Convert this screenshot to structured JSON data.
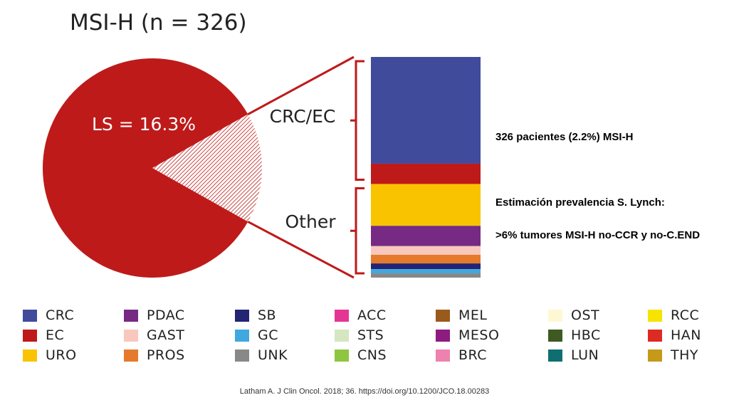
{
  "chart_data": {
    "type": "pie",
    "title": "MSI-H (n = 326)",
    "pie": {
      "slices": [
        {
          "label": "LS = 16.3%",
          "value": 16.3,
          "color": "#ffffff",
          "pattern": "hatched"
        },
        {
          "label": "",
          "value": 83.7,
          "color": "#be1a1a"
        }
      ],
      "slice_label": "LS = 16.3%"
    },
    "stacked_bar": {
      "groups": [
        "CRC/EC",
        "Other"
      ],
      "segments": [
        {
          "category": "CRC",
          "value": 50.5,
          "color": "#404b9c"
        },
        {
          "category": "EC",
          "value": 9.6,
          "color": "#be1a1a"
        },
        {
          "category": "URO",
          "value": 19.8,
          "color": "#f9c300"
        },
        {
          "category": "PDAC",
          "value": 9.6,
          "color": "#762a83"
        },
        {
          "category": "GAST",
          "value": 4.1,
          "color": "#f8c8bc"
        },
        {
          "category": "PROS",
          "value": 4.1,
          "color": "#e57a2c"
        },
        {
          "category": "SB",
          "value": 2.7,
          "color": "#232474"
        },
        {
          "category": "GC",
          "value": 2.0,
          "color": "#40a8de"
        },
        {
          "category": "UNK",
          "value": 2.0,
          "color": "#888888"
        }
      ]
    },
    "legend": [
      {
        "label": "CRC",
        "color": "#404b9c"
      },
      {
        "label": "EC",
        "color": "#be1a1a"
      },
      {
        "label": "URO",
        "color": "#f9c300"
      },
      {
        "label": "PDAC",
        "color": "#762a83"
      },
      {
        "label": "GAST",
        "color": "#f8c8bc"
      },
      {
        "label": "PROS",
        "color": "#e57a2c"
      },
      {
        "label": "SB",
        "color": "#232474"
      },
      {
        "label": "GC",
        "color": "#40a8de"
      },
      {
        "label": "UNK",
        "color": "#888888"
      },
      {
        "label": "ACC",
        "color": "#e43594"
      },
      {
        "label": "STS",
        "color": "#d5e6c0"
      },
      {
        "label": "CNS",
        "color": "#8fc63f"
      },
      {
        "label": "MEL",
        "color": "#9a5a1c"
      },
      {
        "label": "MESO",
        "color": "#8e1b7f"
      },
      {
        "label": "BRC",
        "color": "#ee82ae"
      },
      {
        "label": "OST",
        "color": "#fdf8d3"
      },
      {
        "label": "HBC",
        "color": "#3e5a20"
      },
      {
        "label": "LUN",
        "color": "#0f6f70"
      },
      {
        "label": "RCC",
        "color": "#f7e300"
      },
      {
        "label": "HAN",
        "color": "#dd2a22"
      },
      {
        "label": "THY",
        "color": "#c49a18"
      }
    ]
  },
  "notes": {
    "line1": "326 pacientes (2.2%) MSI-H",
    "line2": "Estimación prevalencia S. Lynch:",
    "line3": ">6% tumores MSI-H no-CCR y no-C.END"
  },
  "citation": "Latham A. J Clin Oncol. 2018; 36. https://doi.org/10.1200/JCO.18.00283",
  "colors": {
    "pie_red": "#be1a1a",
    "connector": "#be1a1a"
  }
}
